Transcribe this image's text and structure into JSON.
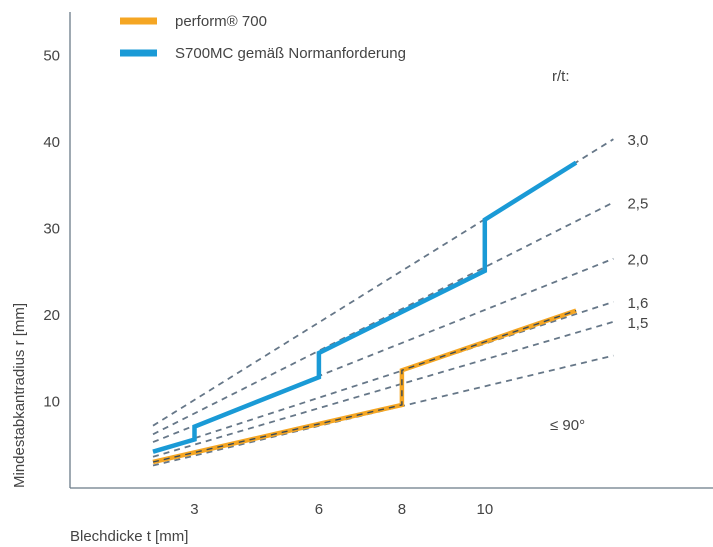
{
  "chart_data": {
    "type": "line",
    "title": "",
    "xlabel": "Blechdicke t [mm]",
    "ylabel": "Mindestabkantradius r [mm]",
    "xlim": [
      0,
      15.5
    ],
    "ylim": [
      0,
      55
    ],
    "x_ticks": [
      3,
      6,
      8,
      10
    ],
    "y_ticks": [
      10,
      20,
      30,
      40,
      50
    ],
    "grid": false,
    "legend_position": "top-left",
    "series": [
      {
        "name": "perform® 700",
        "color": "#f5a623",
        "dashed_overlay": true,
        "points": [
          [
            2,
            3.0
          ],
          [
            8,
            9.6
          ],
          [
            8,
            13.6
          ],
          [
            12.2,
            20.5
          ]
        ]
      },
      {
        "name": "S700MC gemäß Normanforderung",
        "color": "#1a9ad6",
        "dashed_overlay": false,
        "points": [
          [
            2,
            4.2
          ],
          [
            3,
            5.6
          ],
          [
            3,
            7.1
          ],
          [
            6,
            12.8
          ],
          [
            6,
            15.6
          ],
          [
            10,
            25.1
          ],
          [
            10,
            31.0
          ],
          [
            12.2,
            37.6
          ]
        ]
      }
    ],
    "ratio_lines": {
      "heading": "r/t:",
      "color": "#667788",
      "lines": [
        {
          "label": "3,0",
          "points": [
            [
              2,
              7.2
            ],
            [
              13.1,
              40.3
            ]
          ]
        },
        {
          "label": "2,5",
          "points": [
            [
              2,
              6.2
            ],
            [
              13.1,
              33.0
            ]
          ]
        },
        {
          "label": "2,0",
          "points": [
            [
              2,
              5.3
            ],
            [
              13.1,
              26.5
            ]
          ]
        },
        {
          "label": "1,6",
          "points": [
            [
              2,
              4.2
            ],
            [
              13.1,
              21.5
            ]
          ]
        },
        {
          "label": "1,5",
          "points": [
            [
              2,
              3.6
            ],
            [
              13.1,
              19.2
            ]
          ]
        },
        {
          "label": "",
          "points": [
            [
              2,
              2.6
            ],
            [
              13.1,
              15.3
            ]
          ]
        }
      ]
    },
    "angle_note": "≤ 90°"
  }
}
